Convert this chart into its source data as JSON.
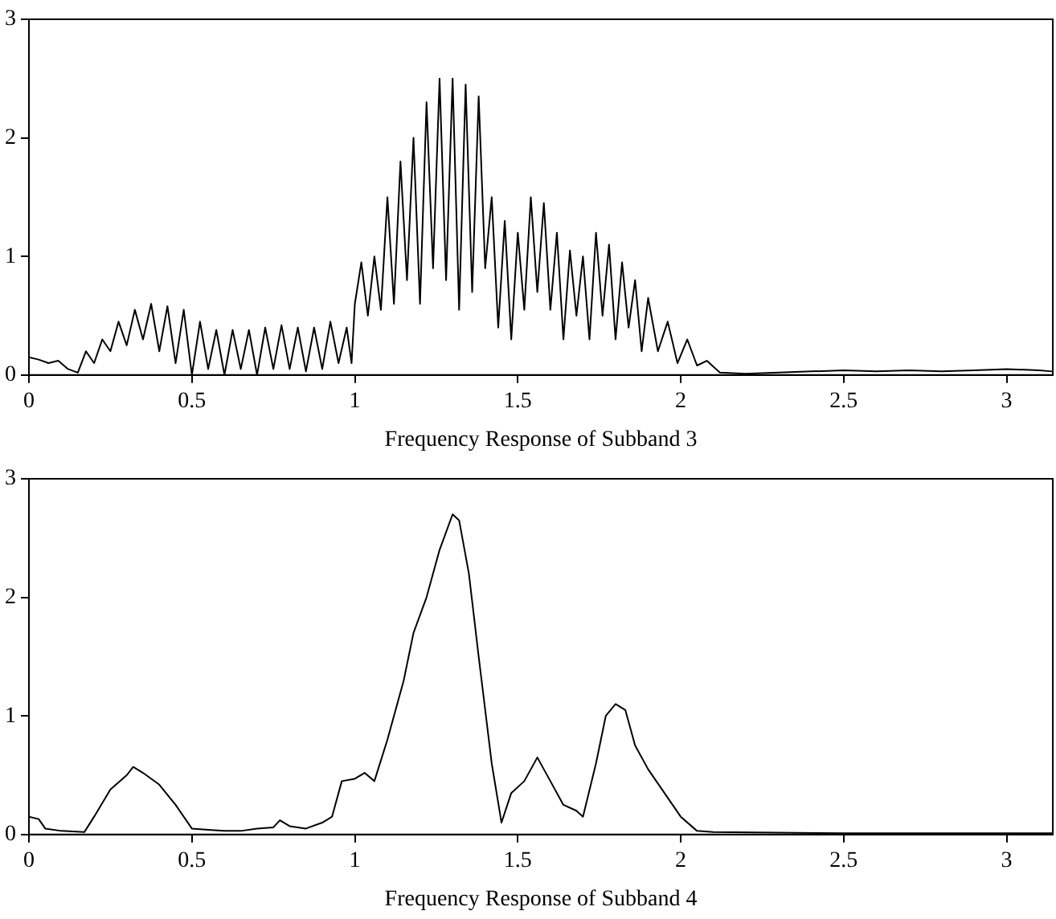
{
  "chart_data": [
    {
      "type": "line",
      "xlabel": "Frequency Response of Subband 3",
      "color": "#000000",
      "xlim": [
        0,
        3.1416
      ],
      "xticks": [
        0,
        0.5,
        1,
        1.5,
        2,
        2.5,
        3
      ],
      "ylim": [
        0,
        3
      ],
      "yticks": [
        0,
        1,
        2,
        3
      ],
      "x": [
        0,
        0.03,
        0.06,
        0.09,
        0.12,
        0.15,
        0.175,
        0.2,
        0.225,
        0.25,
        0.275,
        0.3,
        0.325,
        0.35,
        0.375,
        0.4,
        0.425,
        0.45,
        0.475,
        0.5,
        0.525,
        0.55,
        0.575,
        0.6,
        0.625,
        0.65,
        0.675,
        0.7,
        0.725,
        0.75,
        0.775,
        0.8,
        0.825,
        0.85,
        0.875,
        0.9,
        0.925,
        0.95,
        0.975,
        0.99,
        1.0,
        1.02,
        1.04,
        1.06,
        1.08,
        1.1,
        1.12,
        1.14,
        1.16,
        1.18,
        1.2,
        1.22,
        1.24,
        1.26,
        1.28,
        1.3,
        1.32,
        1.34,
        1.36,
        1.38,
        1.4,
        1.42,
        1.44,
        1.46,
        1.48,
        1.5,
        1.52,
        1.54,
        1.56,
        1.58,
        1.6,
        1.62,
        1.64,
        1.66,
        1.68,
        1.7,
        1.72,
        1.74,
        1.76,
        1.78,
        1.8,
        1.82,
        1.84,
        1.86,
        1.88,
        1.9,
        1.93,
        1.96,
        1.99,
        2.02,
        2.05,
        2.08,
        2.12,
        2.2,
        2.3,
        2.4,
        2.5,
        2.6,
        2.7,
        2.8,
        2.9,
        3.0,
        3.1,
        3.14
      ],
      "values": [
        0.15,
        0.13,
        0.1,
        0.12,
        0.05,
        0.02,
        0.2,
        0.1,
        0.3,
        0.2,
        0.45,
        0.25,
        0.55,
        0.3,
        0.6,
        0.2,
        0.58,
        0.1,
        0.55,
        0,
        0.45,
        0.05,
        0.38,
        0,
        0.38,
        0.05,
        0.38,
        0,
        0.4,
        0.05,
        0.42,
        0.05,
        0.4,
        0.03,
        0.4,
        0.05,
        0.45,
        0.1,
        0.4,
        0.1,
        0.6,
        0.95,
        0.5,
        1.0,
        0.55,
        1.5,
        0.6,
        1.8,
        0.8,
        2.0,
        0.6,
        2.3,
        0.9,
        2.5,
        0.8,
        2.5,
        0.55,
        2.45,
        0.7,
        2.35,
        0.9,
        1.5,
        0.4,
        1.3,
        0.3,
        1.2,
        0.55,
        1.5,
        0.7,
        1.45,
        0.55,
        1.2,
        0.3,
        1.05,
        0.5,
        1.0,
        0.3,
        1.2,
        0.5,
        1.1,
        0.3,
        0.95,
        0.4,
        0.8,
        0.2,
        0.65,
        0.2,
        0.45,
        0.1,
        0.3,
        0.08,
        0.12,
        0.02,
        0.01,
        0.02,
        0.03,
        0.04,
        0.03,
        0.04,
        0.03,
        0.04,
        0.05,
        0.04,
        0.03
      ]
    },
    {
      "type": "line",
      "xlabel": "Frequency Response of Subband 4",
      "color": "#000000",
      "xlim": [
        0,
        3.1416
      ],
      "xticks": [
        0,
        0.5,
        1,
        1.5,
        2,
        2.5,
        3
      ],
      "ylim": [
        0,
        3
      ],
      "yticks": [
        0,
        1,
        2,
        3
      ],
      "x": [
        0,
        0.03,
        0.05,
        0.1,
        0.17,
        0.2,
        0.25,
        0.3,
        0.32,
        0.35,
        0.4,
        0.45,
        0.5,
        0.55,
        0.6,
        0.65,
        0.7,
        0.75,
        0.77,
        0.8,
        0.85,
        0.9,
        0.93,
        0.96,
        1.0,
        1.03,
        1.06,
        1.1,
        1.15,
        1.18,
        1.22,
        1.26,
        1.3,
        1.32,
        1.35,
        1.38,
        1.42,
        1.45,
        1.48,
        1.52,
        1.56,
        1.6,
        1.64,
        1.68,
        1.7,
        1.74,
        1.77,
        1.8,
        1.83,
        1.86,
        1.9,
        1.95,
        2.0,
        2.05,
        2.1,
        2.5,
        3.14
      ],
      "values": [
        0.15,
        0.13,
        0.05,
        0.03,
        0.02,
        0.15,
        0.38,
        0.5,
        0.57,
        0.52,
        0.42,
        0.25,
        0.05,
        0.04,
        0.03,
        0.03,
        0.05,
        0.06,
        0.12,
        0.07,
        0.05,
        0.1,
        0.15,
        0.45,
        0.47,
        0.52,
        0.45,
        0.8,
        1.3,
        1.7,
        2.0,
        2.4,
        2.7,
        2.65,
        2.2,
        1.5,
        0.6,
        0.1,
        0.35,
        0.45,
        0.65,
        0.45,
        0.25,
        0.2,
        0.15,
        0.6,
        1.0,
        1.1,
        1.05,
        0.75,
        0.55,
        0.35,
        0.15,
        0.03,
        0.02,
        0.01,
        0.01
      ]
    }
  ]
}
